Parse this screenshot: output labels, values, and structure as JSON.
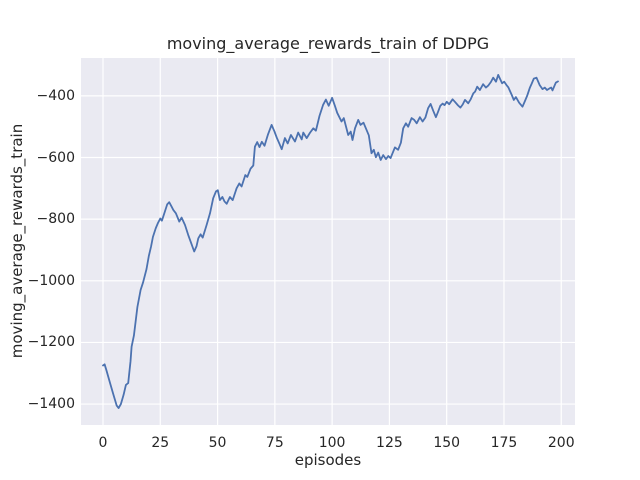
{
  "style": {
    "figure_bg": "#ffffff",
    "axes_bg": "#eaeaf2",
    "grid_color": "#ffffff",
    "text_color": "#262626",
    "line_color": "#4c72b0"
  },
  "chart_data": {
    "type": "line",
    "title": "moving_average_rewards_train of DDPG",
    "xlabel": "episodes",
    "ylabel": "moving_average_rewards_train",
    "legend": null,
    "grid": true,
    "xlim": [
      -9.6,
      206
    ],
    "ylim": [
      -1468,
      -277
    ],
    "x_ticks": [
      0,
      25,
      50,
      75,
      100,
      125,
      150,
      175,
      200
    ],
    "x_tick_labels": [
      "0",
      "25",
      "50",
      "75",
      "100",
      "125",
      "150",
      "175",
      "200"
    ],
    "y_ticks": [
      -400,
      -600,
      -800,
      -1000,
      -1200,
      -1400
    ],
    "y_tick_labels": [
      "−400",
      "−600",
      "−800",
      "−1000",
      "−1200",
      "−1400"
    ],
    "series": [
      {
        "name": "moving_average_rewards_train",
        "color": "#4c72b0",
        "points": [
          [
            0,
            -1275
          ],
          [
            0.7,
            -1271
          ],
          [
            1.5,
            -1290
          ],
          [
            3,
            -1330
          ],
          [
            4.5,
            -1368
          ],
          [
            6,
            -1405
          ],
          [
            6.8,
            -1413
          ],
          [
            7.8,
            -1400
          ],
          [
            9,
            -1370
          ],
          [
            10,
            -1338
          ],
          [
            11,
            -1332
          ],
          [
            12,
            -1262
          ],
          [
            12.5,
            -1214
          ],
          [
            13.5,
            -1178
          ],
          [
            15,
            -1085
          ],
          [
            16.4,
            -1030
          ],
          [
            17.5,
            -1005
          ],
          [
            19,
            -962
          ],
          [
            20,
            -920
          ],
          [
            21,
            -888
          ],
          [
            21.8,
            -858
          ],
          [
            23,
            -830
          ],
          [
            24,
            -812
          ],
          [
            25,
            -798
          ],
          [
            25.7,
            -805
          ],
          [
            27,
            -775
          ],
          [
            28,
            -752
          ],
          [
            28.9,
            -745
          ],
          [
            30,
            -760
          ],
          [
            30.7,
            -770
          ],
          [
            31.8,
            -781
          ],
          [
            33.3,
            -808
          ],
          [
            34.3,
            -795
          ],
          [
            35.8,
            -819
          ],
          [
            37.2,
            -851
          ],
          [
            38.5,
            -878
          ],
          [
            39.8,
            -905
          ],
          [
            40.8,
            -888
          ],
          [
            41.6,
            -862
          ],
          [
            42.6,
            -849
          ],
          [
            43.5,
            -860
          ],
          [
            45.2,
            -819
          ],
          [
            46.7,
            -781
          ],
          [
            48.1,
            -732
          ],
          [
            49.3,
            -710
          ],
          [
            50.1,
            -706
          ],
          [
            51,
            -738
          ],
          [
            52.1,
            -728
          ],
          [
            53,
            -742
          ],
          [
            54,
            -750
          ],
          [
            55.4,
            -728
          ],
          [
            56.6,
            -738
          ],
          [
            58.3,
            -700
          ],
          [
            59.5,
            -684
          ],
          [
            60.5,
            -694
          ],
          [
            62.1,
            -657
          ],
          [
            63,
            -663
          ],
          [
            64.4,
            -636
          ],
          [
            65.6,
            -626
          ],
          [
            66.3,
            -565
          ],
          [
            67.3,
            -550
          ],
          [
            68.3,
            -566
          ],
          [
            69.3,
            -549
          ],
          [
            70.5,
            -562
          ],
          [
            72,
            -525
          ],
          [
            73.6,
            -494
          ],
          [
            74.8,
            -515
          ],
          [
            75.8,
            -535
          ],
          [
            77,
            -555
          ],
          [
            78,
            -573
          ],
          [
            79.4,
            -537
          ],
          [
            80.6,
            -554
          ],
          [
            82,
            -527
          ],
          [
            83.8,
            -548
          ],
          [
            85.2,
            -519
          ],
          [
            86.7,
            -541
          ],
          [
            87.4,
            -519
          ],
          [
            88.9,
            -537
          ],
          [
            90.3,
            -520
          ],
          [
            91.8,
            -505
          ],
          [
            92.9,
            -513
          ],
          [
            94.5,
            -465
          ],
          [
            96,
            -430
          ],
          [
            97.3,
            -412
          ],
          [
            98.5,
            -432
          ],
          [
            100,
            -406
          ],
          [
            101.2,
            -432
          ],
          [
            102.2,
            -455
          ],
          [
            104.1,
            -483
          ],
          [
            105.1,
            -472
          ],
          [
            107,
            -527
          ],
          [
            108.1,
            -516
          ],
          [
            108.9,
            -543
          ],
          [
            110,
            -505
          ],
          [
            111.4,
            -478
          ],
          [
            112.4,
            -494
          ],
          [
            113.7,
            -487
          ],
          [
            115,
            -510
          ],
          [
            116,
            -528
          ],
          [
            117.2,
            -586
          ],
          [
            118.2,
            -575
          ],
          [
            119.1,
            -599
          ],
          [
            120.1,
            -584
          ],
          [
            121.2,
            -608
          ],
          [
            122.3,
            -592
          ],
          [
            123.5,
            -605
          ],
          [
            124.5,
            -595
          ],
          [
            125.5,
            -602
          ],
          [
            127.4,
            -567
          ],
          [
            128.8,
            -575
          ],
          [
            130,
            -552
          ],
          [
            131,
            -505
          ],
          [
            132.2,
            -489
          ],
          [
            133.2,
            -500
          ],
          [
            134.7,
            -472
          ],
          [
            135.8,
            -478
          ],
          [
            136.9,
            -489
          ],
          [
            138.3,
            -469
          ],
          [
            139.5,
            -483
          ],
          [
            140.7,
            -470
          ],
          [
            141.9,
            -440
          ],
          [
            143,
            -426
          ],
          [
            144.1,
            -448
          ],
          [
            145.3,
            -469
          ],
          [
            146.2,
            -452
          ],
          [
            147.2,
            -432
          ],
          [
            148.2,
            -425
          ],
          [
            149.1,
            -430
          ],
          [
            150,
            -419
          ],
          [
            151.1,
            -427
          ],
          [
            152.6,
            -411
          ],
          [
            153.6,
            -419
          ],
          [
            155,
            -431
          ],
          [
            156,
            -438
          ],
          [
            157,
            -428
          ],
          [
            158,
            -413
          ],
          [
            159.4,
            -424
          ],
          [
            160.5,
            -411
          ],
          [
            161.6,
            -392
          ],
          [
            162.4,
            -386
          ],
          [
            163.3,
            -370
          ],
          [
            164.5,
            -381
          ],
          [
            165.9,
            -362
          ],
          [
            167.1,
            -373
          ],
          [
            168.2,
            -366
          ],
          [
            169.3,
            -355
          ],
          [
            170.3,
            -341
          ],
          [
            171.5,
            -354
          ],
          [
            172.5,
            -332
          ],
          [
            173.3,
            -345
          ],
          [
            174.2,
            -359
          ],
          [
            175.1,
            -354
          ],
          [
            176,
            -364
          ],
          [
            176.9,
            -372
          ],
          [
            178.3,
            -395
          ],
          [
            179.3,
            -413
          ],
          [
            180.2,
            -404
          ],
          [
            181.6,
            -422
          ],
          [
            183.1,
            -435
          ],
          [
            184.1,
            -418
          ],
          [
            185.1,
            -400
          ],
          [
            186.3,
            -373
          ],
          [
            187.1,
            -360
          ],
          [
            188,
            -344
          ],
          [
            189.2,
            -341
          ],
          [
            190.6,
            -365
          ],
          [
            191.8,
            -378
          ],
          [
            192.8,
            -373
          ],
          [
            193.8,
            -381
          ],
          [
            195,
            -375
          ],
          [
            195.6,
            -373
          ],
          [
            196.2,
            -382
          ],
          [
            197.6,
            -357
          ],
          [
            198.6,
            -353
          ]
        ]
      }
    ]
  }
}
